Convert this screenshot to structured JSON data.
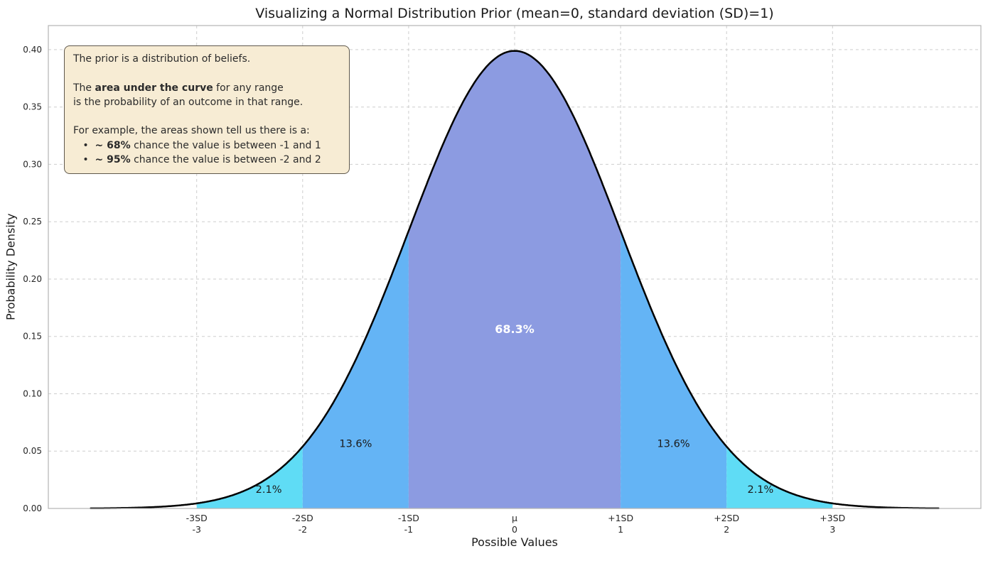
{
  "chart_data": {
    "type": "area",
    "title": "Visualizing a Normal Distribution Prior (mean=0, standard deviation (SD)=1)",
    "xlabel": "Possible Values",
    "ylabel": "Probability Density",
    "xlim": [
      -4.4,
      4.4
    ],
    "ylim": [
      0,
      0.421
    ],
    "grid": true,
    "curve_color": "#000000",
    "yticks": [
      0,
      0.05,
      0.1,
      0.15,
      0.2,
      0.25,
      0.3,
      0.35,
      0.4
    ],
    "xticks": [
      {
        "x": -3,
        "line1": "-3SD",
        "line2": "-3"
      },
      {
        "x": -2,
        "line1": "-2SD",
        "line2": "-2"
      },
      {
        "x": -1,
        "line1": "-1SD",
        "line2": "-1"
      },
      {
        "x": 0,
        "line1": "μ",
        "line2": "0"
      },
      {
        "x": 1,
        "line1": "+1SD",
        "line2": "1"
      },
      {
        "x": 2,
        "line1": "+2SD",
        "line2": "2"
      },
      {
        "x": 3,
        "line1": "+3SD",
        "line2": "3"
      }
    ],
    "distribution": {
      "mean": 0,
      "sd": 1,
      "peak_density": 0.3989,
      "curve_range": [
        -4,
        4
      ]
    },
    "regions": [
      {
        "from": -3,
        "to": -2,
        "color": "#5fdcf5",
        "label": "2.1%",
        "label_x": -2.32,
        "label_y": 0.0135,
        "label_color": "#1a1a1a",
        "bold": false
      },
      {
        "from": -2,
        "to": -1,
        "color": "#64b4f5",
        "label": "13.6%",
        "label_x": -1.5,
        "label_y": 0.0535,
        "label_color": "#1a1a1a",
        "bold": false
      },
      {
        "from": -1,
        "to": 1,
        "color": "#8c9be1",
        "label": "68.3%",
        "label_x": 0,
        "label_y": 0.153,
        "label_color": "#ffffff",
        "bold": true
      },
      {
        "from": 1,
        "to": 2,
        "color": "#64b4f5",
        "label": "13.6%",
        "label_x": 1.5,
        "label_y": 0.0535,
        "label_color": "#1a1a1a",
        "bold": false
      },
      {
        "from": 2,
        "to": 3,
        "color": "#5fdcf5",
        "label": "2.1%",
        "label_x": 2.32,
        "label_y": 0.0135,
        "label_color": "#1a1a1a",
        "bold": false
      }
    ]
  },
  "annotation": {
    "bg": "#f7ecd4",
    "border": "#5f584c",
    "lines": [
      [
        {
          "t": "The prior is a distribution of beliefs.",
          "b": false
        }
      ],
      [],
      [
        {
          "t": "The ",
          "b": false
        },
        {
          "t": "area under the curve",
          "b": true
        },
        {
          "t": " for any range",
          "b": false
        }
      ],
      [
        {
          "t": "is the probability of an outcome in that range.",
          "b": false
        }
      ],
      [],
      [
        {
          "t": "For example, the areas shown tell us there is a:",
          "b": false
        }
      ],
      [
        {
          "t": "   •  ",
          "b": false
        },
        {
          "t": "~ 68%",
          "b": true
        },
        {
          "t": " chance the value is between -1 and 1",
          "b": false
        }
      ],
      [
        {
          "t": "   •  ",
          "b": false
        },
        {
          "t": "~ 95%",
          "b": true
        },
        {
          "t": " chance the value is between -2 and 2",
          "b": false
        }
      ]
    ]
  }
}
